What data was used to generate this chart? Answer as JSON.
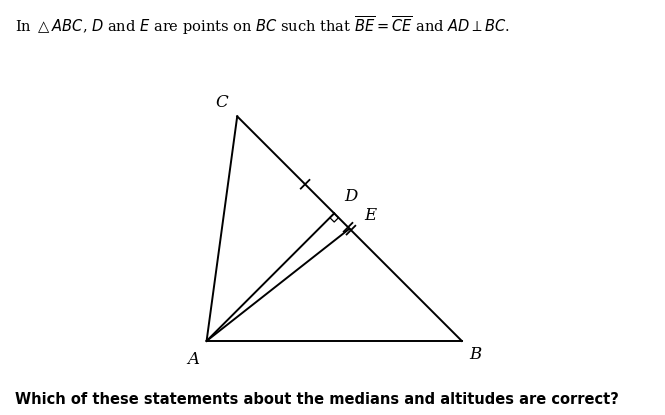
{
  "fig_color": "#ffffff",
  "line_color": "#000000",
  "A": [
    0.13,
    0.12
  ],
  "B": [
    0.88,
    0.12
  ],
  "C": [
    0.22,
    0.78
  ],
  "label_fontsize": 12,
  "sq_size": 0.018
}
